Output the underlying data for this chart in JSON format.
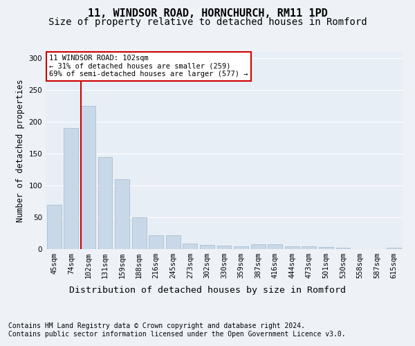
{
  "title_line1": "11, WINDSOR ROAD, HORNCHURCH, RM11 1PD",
  "title_line2": "Size of property relative to detached houses in Romford",
  "xlabel": "Distribution of detached houses by size in Romford",
  "ylabel": "Number of detached properties",
  "footnote1": "Contains HM Land Registry data © Crown copyright and database right 2024.",
  "footnote2": "Contains public sector information licensed under the Open Government Licence v3.0.",
  "bar_labels": [
    "45sqm",
    "74sqm",
    "102sqm",
    "131sqm",
    "159sqm",
    "188sqm",
    "216sqm",
    "245sqm",
    "273sqm",
    "302sqm",
    "330sqm",
    "359sqm",
    "387sqm",
    "416sqm",
    "444sqm",
    "473sqm",
    "501sqm",
    "530sqm",
    "558sqm",
    "587sqm",
    "615sqm"
  ],
  "bar_values": [
    70,
    190,
    225,
    145,
    110,
    50,
    22,
    22,
    9,
    6,
    5,
    4,
    8,
    8,
    4,
    4,
    3,
    2,
    0,
    0,
    2
  ],
  "bar_color": "#c8d8e8",
  "bar_edgecolor": "#a0b8cc",
  "highlight_index": 2,
  "highlight_color": "#cc0000",
  "annotation_text": "11 WINDSOR ROAD: 102sqm\n← 31% of detached houses are smaller (259)\n69% of semi-detached houses are larger (577) →",
  "annotation_box_edgecolor": "#cc0000",
  "annotation_box_facecolor": "#ffffff",
  "ylim": [
    0,
    310
  ],
  "yticks": [
    0,
    50,
    100,
    150,
    200,
    250,
    300
  ],
  "bg_color": "#eef2f7",
  "plot_bg_color": "#e8eef5",
  "grid_color": "#ffffff",
  "title1_fontsize": 11,
  "title2_fontsize": 10,
  "xlabel_fontsize": 9.5,
  "ylabel_fontsize": 8.5,
  "tick_fontsize": 7.5,
  "footnote_fontsize": 7
}
